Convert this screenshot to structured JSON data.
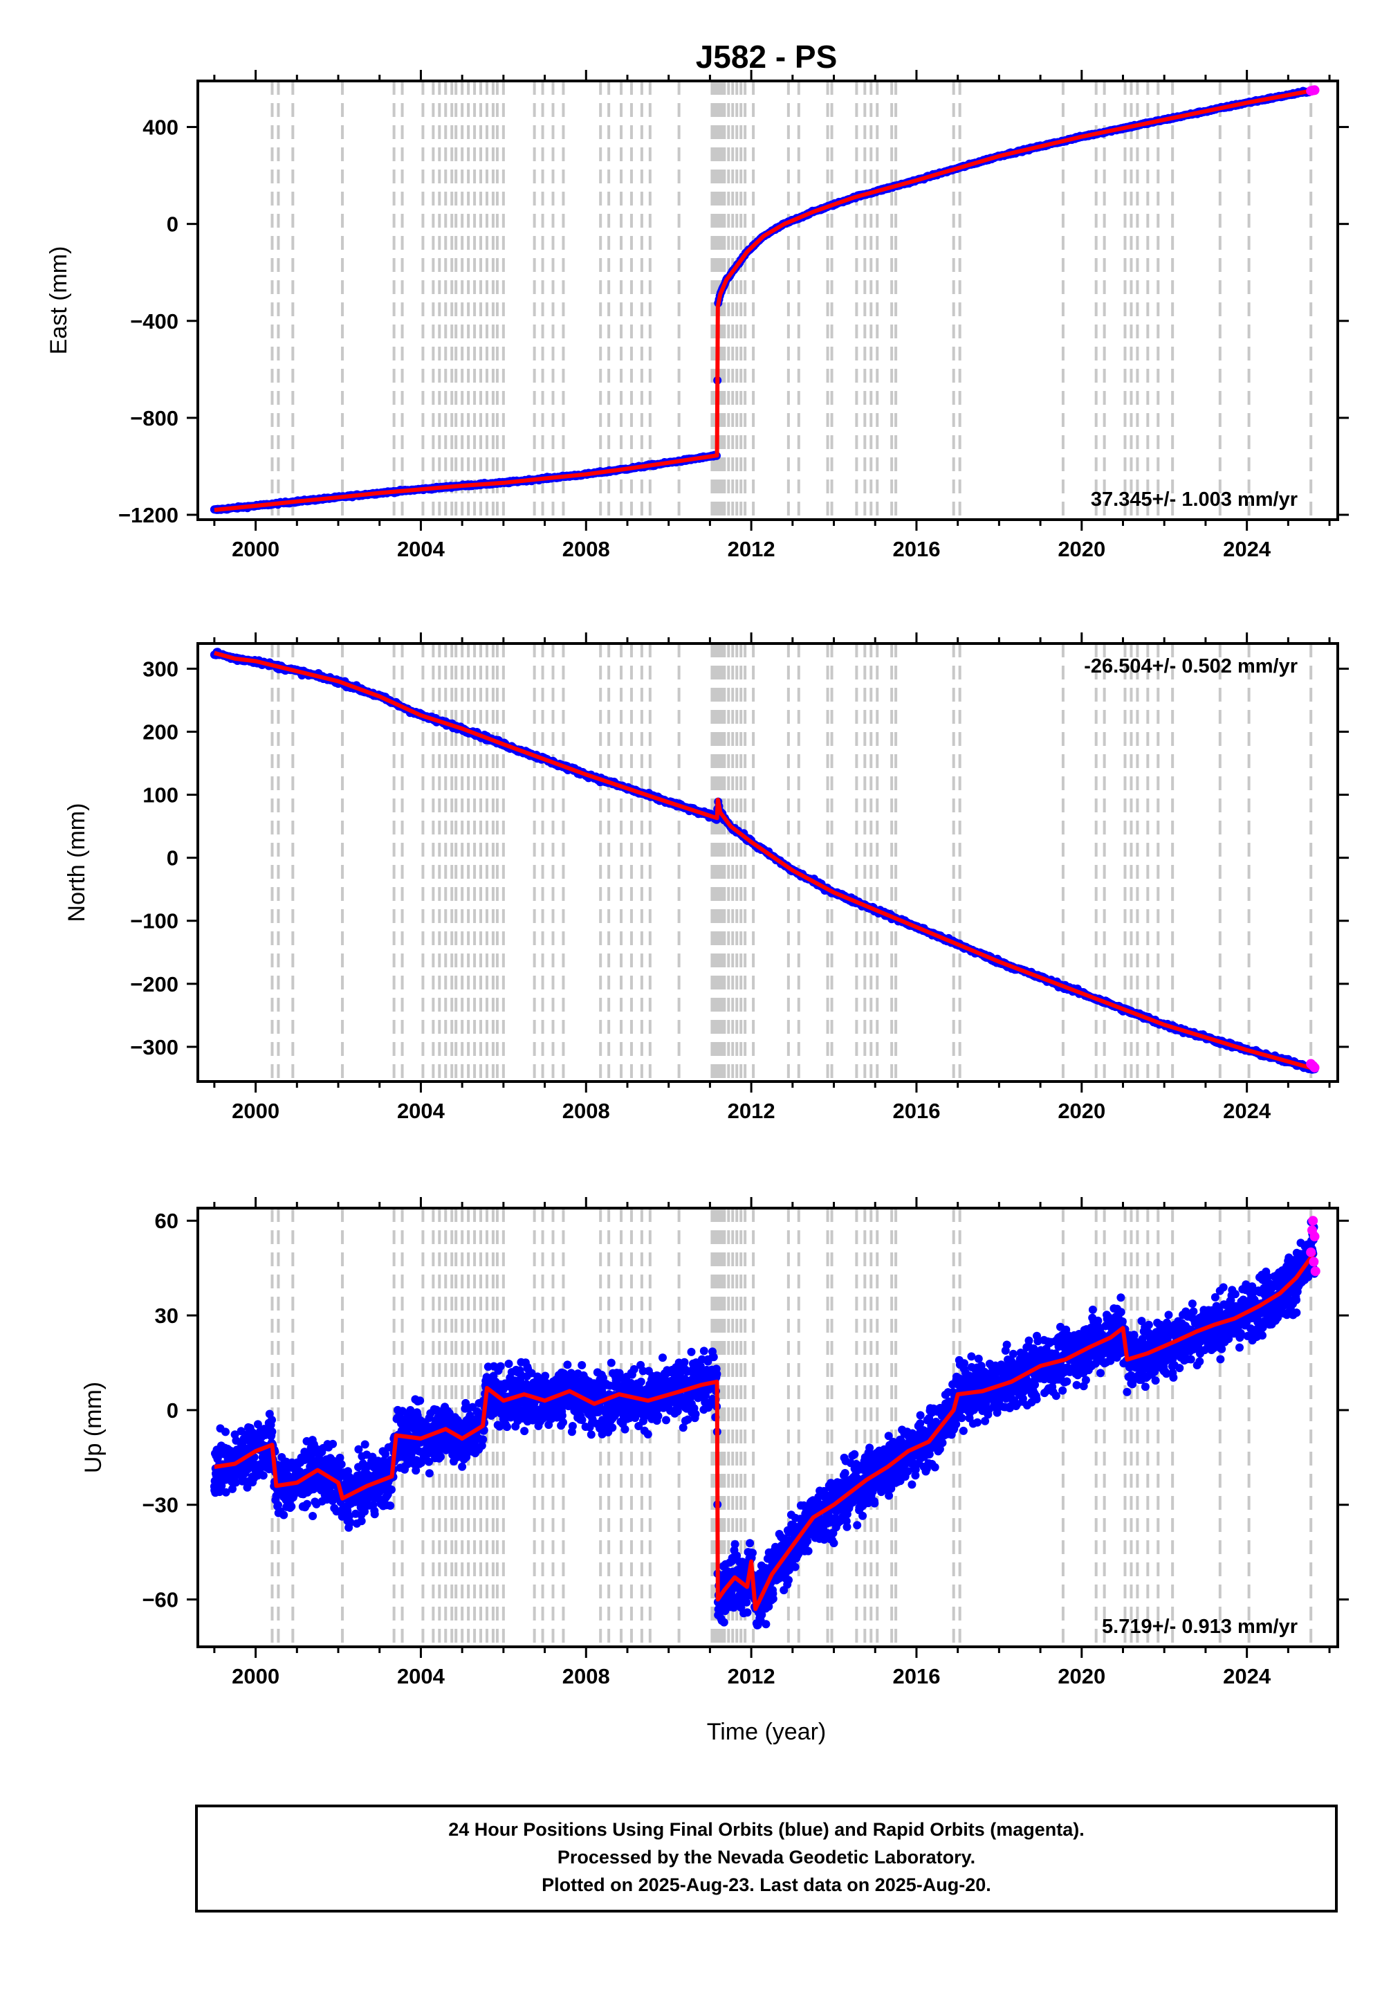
{
  "title": "J582 - PS",
  "colors": {
    "final_orbits": "#0000ff",
    "rapid_orbits": "#ff00ff",
    "model": "#ff0000",
    "event_lines": "#c8c8c8",
    "frame": "#000000"
  },
  "chart_data": [
    {
      "type": "scatter",
      "panel": "east",
      "ylabel": "East (mm)",
      "xlabel": "",
      "xlim": [
        1998.6,
        2026.2
      ],
      "ylim": [
        -1220,
        590
      ],
      "xticks": [
        2000,
        2004,
        2008,
        2012,
        2016,
        2020,
        2024
      ],
      "yticks": [
        -1200,
        -800,
        -400,
        0,
        400
      ],
      "rate_label": "37.345+/- 1.003 mm/yr",
      "rate_position": "bottom-right",
      "grid": false,
      "legend": "none",
      "trend_points": [
        [
          1999.0,
          -1180
        ],
        [
          2000.0,
          -1163
        ],
        [
          2001.0,
          -1145
        ],
        [
          2002.0,
          -1128
        ],
        [
          2003.0,
          -1110
        ],
        [
          2004.0,
          -1095
        ],
        [
          2005.0,
          -1080
        ],
        [
          2006.0,
          -1068
        ],
        [
          2007.0,
          -1050
        ],
        [
          2008.0,
          -1033
        ],
        [
          2009.0,
          -1010
        ],
        [
          2010.0,
          -985
        ],
        [
          2011.17,
          -955
        ],
        [
          2011.19,
          -340
        ],
        [
          2011.25,
          -290
        ],
        [
          2011.4,
          -230
        ],
        [
          2011.6,
          -185
        ],
        [
          2011.9,
          -115
        ],
        [
          2012.3,
          -50
        ],
        [
          2012.8,
          0
        ],
        [
          2013.5,
          50
        ],
        [
          2014.5,
          110
        ],
        [
          2016.0,
          180
        ],
        [
          2018.0,
          280
        ],
        [
          2020.0,
          360
        ],
        [
          2022.0,
          430
        ],
        [
          2024.0,
          500
        ],
        [
          2025.64,
          552
        ]
      ],
      "rapid_points": [
        [
          2025.55,
          549
        ],
        [
          2025.6,
          551
        ],
        [
          2025.64,
          552
        ]
      ]
    },
    {
      "type": "scatter",
      "panel": "north",
      "ylabel": "North (mm)",
      "xlabel": "",
      "xlim": [
        1998.6,
        2026.2
      ],
      "ylim": [
        -355,
        340
      ],
      "xticks": [
        2000,
        2004,
        2008,
        2012,
        2016,
        2020,
        2024
      ],
      "yticks": [
        -300,
        -200,
        -100,
        0,
        100,
        200,
        300
      ],
      "rate_label": "-26.504+/- 0.502 mm/yr",
      "rate_position": "top-right",
      "grid": false,
      "legend": "none",
      "trend_points": [
        [
          1999.0,
          325
        ],
        [
          1999.5,
          316
        ],
        [
          2000.0,
          312
        ],
        [
          2001.0,
          296
        ],
        [
          2002.0,
          280
        ],
        [
          2003.0,
          256
        ],
        [
          2004.0,
          226
        ],
        [
          2005.0,
          205
        ],
        [
          2006.0,
          180
        ],
        [
          2007.0,
          156
        ],
        [
          2008.0,
          132
        ],
        [
          2009.0,
          110
        ],
        [
          2010.0,
          88
        ],
        [
          2011.17,
          63
        ],
        [
          2011.19,
          92
        ],
        [
          2011.25,
          72
        ],
        [
          2011.5,
          50
        ],
        [
          2012.0,
          25
        ],
        [
          2013.0,
          -20
        ],
        [
          2014.0,
          -55
        ],
        [
          2016.0,
          -110
        ],
        [
          2018.0,
          -165
        ],
        [
          2020.0,
          -215
        ],
        [
          2022.0,
          -265
        ],
        [
          2024.0,
          -305
        ],
        [
          2025.64,
          -335
        ]
      ],
      "rapid_points": [
        [
          2025.55,
          -327
        ],
        [
          2025.6,
          -330
        ],
        [
          2025.64,
          -333
        ]
      ]
    },
    {
      "type": "scatter",
      "panel": "up",
      "ylabel": "Up (mm)",
      "xlabel": "Time (year)",
      "xlim": [
        1998.6,
        2026.2
      ],
      "ylim": [
        -75,
        64
      ],
      "xticks": [
        2000,
        2004,
        2008,
        2012,
        2016,
        2020,
        2024
      ],
      "yticks": [
        -60,
        -30,
        0,
        30,
        60
      ],
      "rate_label": "5.719+/- 0.913 mm/yr",
      "rate_position": "bottom-right",
      "grid": false,
      "legend": "none",
      "trend_points": [
        [
          1999.0,
          -18
        ],
        [
          1999.5,
          -17
        ],
        [
          2000.0,
          -13
        ],
        [
          2000.4,
          -11
        ],
        [
          2000.5,
          -24
        ],
        [
          2001.0,
          -23
        ],
        [
          2001.5,
          -19
        ],
        [
          2002.0,
          -23
        ],
        [
          2002.1,
          -28
        ],
        [
          2002.7,
          -24
        ],
        [
          2003.3,
          -21
        ],
        [
          2003.4,
          -8
        ],
        [
          2004.0,
          -9
        ],
        [
          2004.6,
          -6
        ],
        [
          2005.0,
          -9
        ],
        [
          2005.5,
          -5
        ],
        [
          2005.6,
          7
        ],
        [
          2006.0,
          3
        ],
        [
          2006.5,
          5
        ],
        [
          2007.0,
          3
        ],
        [
          2007.6,
          6
        ],
        [
          2008.2,
          2
        ],
        [
          2008.8,
          5
        ],
        [
          2009.5,
          3
        ],
        [
          2010.3,
          6
        ],
        [
          2010.8,
          8
        ],
        [
          2011.17,
          9
        ],
        [
          2011.19,
          -60
        ],
        [
          2011.35,
          -57
        ],
        [
          2011.6,
          -53
        ],
        [
          2011.9,
          -56
        ],
        [
          2012.0,
          -48
        ],
        [
          2012.1,
          -63
        ],
        [
          2012.5,
          -52
        ],
        [
          2013.0,
          -43
        ],
        [
          2013.5,
          -34
        ],
        [
          2014.0,
          -30
        ],
        [
          2014.8,
          -22
        ],
        [
          2015.3,
          -18
        ],
        [
          2015.8,
          -13
        ],
        [
          2016.3,
          -10
        ],
        [
          2016.9,
          0
        ],
        [
          2017.0,
          5
        ],
        [
          2017.6,
          6
        ],
        [
          2018.3,
          9
        ],
        [
          2019.0,
          14
        ],
        [
          2019.6,
          16
        ],
        [
          2020.2,
          20
        ],
        [
          2020.7,
          23
        ],
        [
          2021.0,
          26
        ],
        [
          2021.1,
          16
        ],
        [
          2021.6,
          18
        ],
        [
          2022.3,
          22
        ],
        [
          2022.8,
          25
        ],
        [
          2023.2,
          27
        ],
        [
          2023.7,
          29
        ],
        [
          2024.3,
          33
        ],
        [
          2024.8,
          37
        ],
        [
          2025.2,
          42
        ],
        [
          2025.64,
          50
        ]
      ],
      "rapid_points": [
        [
          2025.55,
          50
        ],
        [
          2025.58,
          57
        ],
        [
          2025.6,
          60
        ],
        [
          2025.62,
          47
        ],
        [
          2025.64,
          55
        ],
        [
          2025.66,
          44
        ]
      ]
    }
  ],
  "event_line_years": [
    2000.4,
    2000.55,
    2000.9,
    2002.1,
    2003.35,
    2003.55,
    2004.05,
    2004.3,
    2004.45,
    2004.6,
    2004.75,
    2004.85,
    2005.0,
    2005.15,
    2005.3,
    2005.45,
    2005.6,
    2005.75,
    2005.85,
    2006.0,
    2006.75,
    2006.95,
    2007.2,
    2007.45,
    2008.35,
    2008.55,
    2008.85,
    2009.1,
    2009.35,
    2009.55,
    2010.25,
    2011.05,
    2011.1,
    2011.15,
    2011.2,
    2011.25,
    2011.3,
    2011.35,
    2011.45,
    2011.55,
    2011.65,
    2011.75,
    2011.85,
    2012.05,
    2012.9,
    2013.15,
    2013.85,
    2013.95,
    2014.55,
    2014.75,
    2014.9,
    2015.05,
    2015.4,
    2015.5,
    2016.9,
    2017.05,
    2019.55,
    2020.35,
    2020.55,
    2021.05,
    2021.2,
    2021.35,
    2021.6,
    2021.85,
    2022.2,
    2023.35,
    2024.05,
    2025.55
  ],
  "footer": {
    "line1": "24 Hour Positions Using Final Orbits (blue) and Rapid Orbits (magenta).",
    "line2": "Processed by the Nevada Geodetic Laboratory.",
    "line3": "Plotted on 2025-Aug-23. Last data on 2025-Aug-20."
  }
}
